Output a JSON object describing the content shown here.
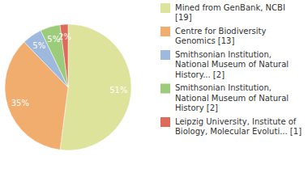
{
  "chart_data": {
    "type": "pie",
    "categories": [
      "Mined from GenBank, NCBI [19]",
      "Centre for Biodiversity Genomics [13]",
      "Smithsonian Institution, National Museum of Natural History... [2]",
      "Smithsonian Institution, National Museum of Natural History [2]",
      "Leipzig University, Institute of Biology, Molecular Evoluti... [1]"
    ],
    "values": [
      51,
      35,
      5,
      5,
      2
    ],
    "value_labels": [
      "51%",
      "35%",
      "5%",
      "5%",
      "2%"
    ],
    "colors": [
      "#dde39a",
      "#f0ad6e",
      "#9eb8de",
      "#9ccc7a",
      "#e06a5a"
    ],
    "data_labels": true,
    "legend": "right"
  }
}
